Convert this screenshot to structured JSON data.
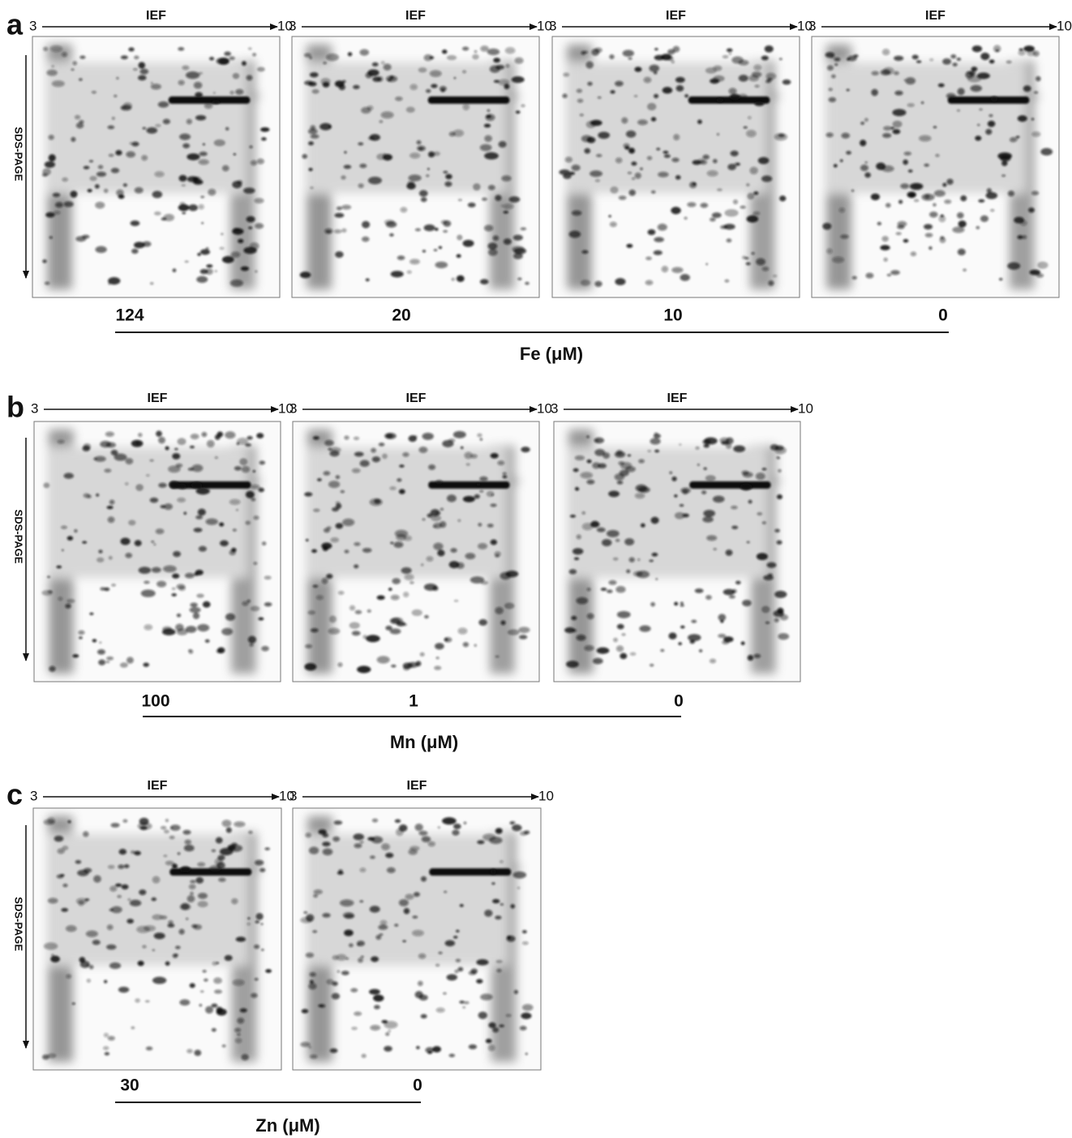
{
  "panels": [
    {
      "label": "a",
      "y_axis": "SDS-PAGE",
      "axis_label": "Fe (μM)",
      "gels": [
        {
          "ief": "IEF",
          "start": "3",
          "end": "10",
          "concentration": "124"
        },
        {
          "ief": "IEF",
          "start": "3",
          "end": "10",
          "concentration": "20"
        },
        {
          "ief": "IEF",
          "start": "3",
          "end": "10",
          "concentration": "10"
        },
        {
          "ief": "IEF",
          "start": "3",
          "end": "10",
          "concentration": "0"
        }
      ]
    },
    {
      "label": "b",
      "y_axis": "SDS-PAGE",
      "axis_label": "Mn (μM)",
      "gels": [
        {
          "ief": "IEF",
          "start": "3",
          "end": "10",
          "concentration": "100"
        },
        {
          "ief": "IEF",
          "start": "3",
          "end": "10",
          "concentration": "1"
        },
        {
          "ief": "IEF",
          "start": "3",
          "end": "10",
          "concentration": "0"
        }
      ]
    },
    {
      "label": "c",
      "y_axis": "SDS-PAGE",
      "axis_label": "Zn (μM)",
      "gels": [
        {
          "ief": "IEF",
          "start": "3",
          "end": "10",
          "concentration": "30"
        },
        {
          "ief": "IEF",
          "start": "3",
          "end": "10",
          "concentration": "0"
        }
      ]
    }
  ]
}
